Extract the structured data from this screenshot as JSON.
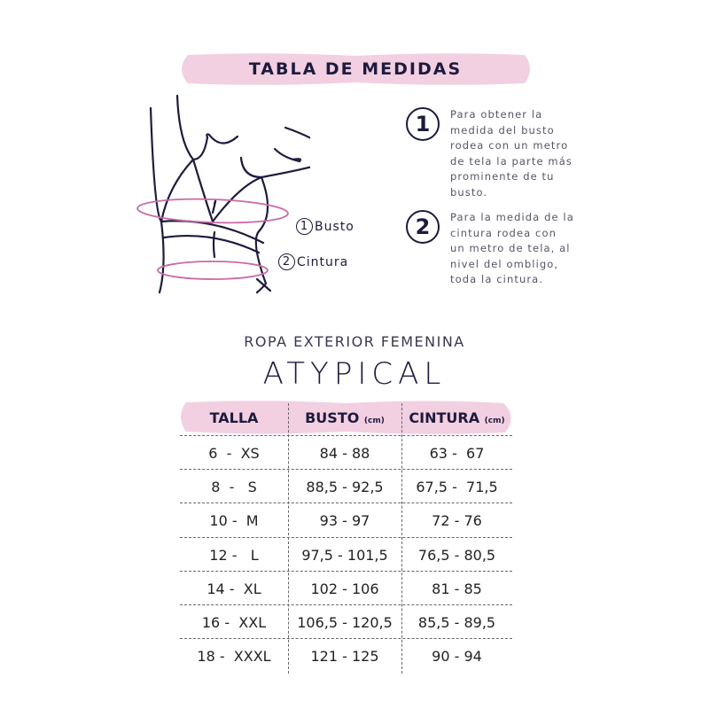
{
  "header": {
    "title": "TABLA DE MEDIDAS"
  },
  "illustration": {
    "labels": [
      {
        "num": "1",
        "text": "Busto"
      },
      {
        "num": "2",
        "text": "Cintura"
      }
    ]
  },
  "instructions": [
    {
      "num": "1",
      "text": "Para obtener la medida del busto rodea con un metro de tela la parte más prominente de tu busto."
    },
    {
      "num": "2",
      "text": "Para la medida de la cintura rodea con un metro de tela, al nivel del ombligo, toda la cintura."
    }
  ],
  "subtitle": "ROPA EXTERIOR FEMENINA",
  "brand": "ATYPICAL",
  "table": {
    "headers": [
      {
        "label": "TALLA",
        "unit": ""
      },
      {
        "label": "BUSTO",
        "unit": "(cm)"
      },
      {
        "label": "CINTURA",
        "unit": "(cm)"
      }
    ],
    "rows": [
      [
        "6  -  XS",
        "84 - 88",
        "63 -  67"
      ],
      [
        "8  -   S",
        "88,5 - 92,5",
        "67,5 -  71,5"
      ],
      [
        "10 -  M",
        "93 - 97",
        "72 - 76"
      ],
      [
        "12 -   L",
        "97,5 - 101,5",
        "76,5 - 80,5"
      ],
      [
        "14 -  XL",
        "102 - 106",
        "81 - 85"
      ],
      [
        "16 -  XXL",
        "106,5 - 120,5",
        "85,5 - 89,5"
      ],
      [
        "18 -  XXXL",
        "121 - 125",
        "90 - 94"
      ]
    ]
  },
  "colors": {
    "accent_pink": "#f3cfe2",
    "ring_pink": "#c96aa6",
    "ink": "#1d1b3d"
  }
}
